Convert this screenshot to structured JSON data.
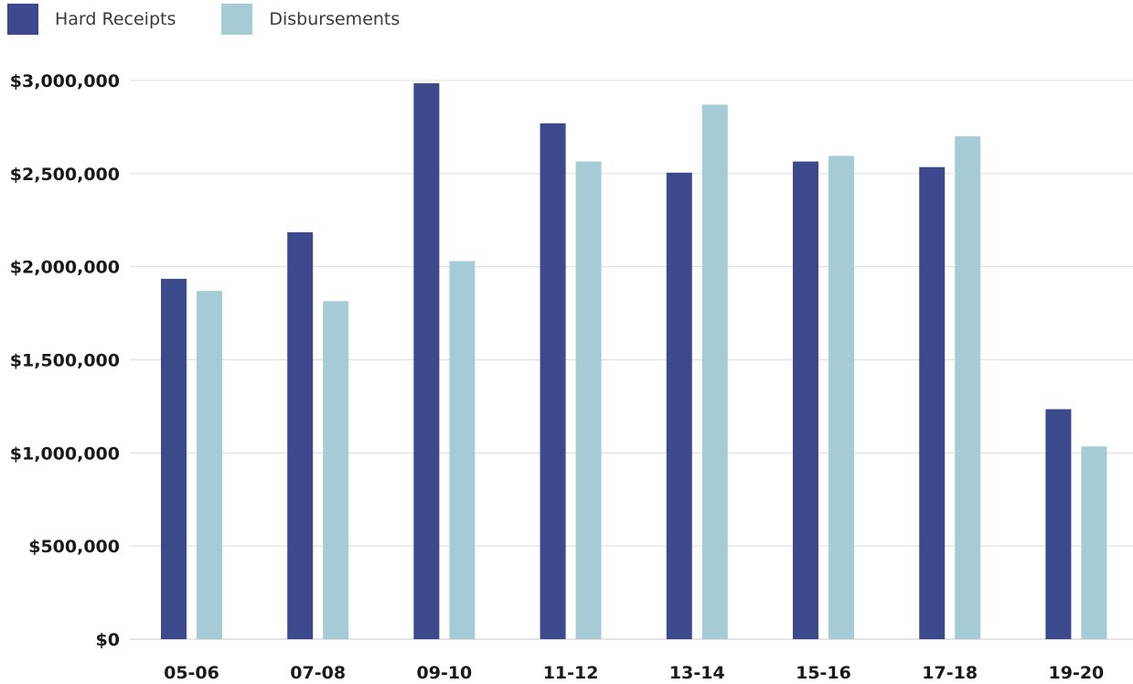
{
  "chart_data": {
    "type": "bar",
    "categories": [
      "05-06",
      "07-08",
      "09-10",
      "11-12",
      "13-14",
      "15-16",
      "17-18",
      "19-20"
    ],
    "series": [
      {
        "name": "Hard Receipts",
        "color": "#3c4a8d",
        "values": [
          1935000,
          2185000,
          2985000,
          2770000,
          2505000,
          2565000,
          2535000,
          1235000
        ]
      },
      {
        "name": "Disbursements",
        "color": "#a5ccd6",
        "values": [
          1870000,
          1815000,
          2030000,
          2565000,
          2870000,
          2595000,
          2700000,
          1035000
        ]
      }
    ],
    "ylim": [
      0,
      3000000
    ],
    "yticks": [
      0,
      500000,
      1000000,
      1500000,
      2000000,
      2500000,
      3000000
    ],
    "ytick_labels": [
      "$0",
      "$500,000",
      "$1,000,000",
      "$1,500,000",
      "$2,000,000",
      "$2,500,000",
      "$3,000,000"
    ],
    "title": "",
    "xlabel": "",
    "ylabel": "",
    "grid": true,
    "legend_position": "top-left"
  },
  "legend": {
    "items": [
      {
        "label": "Hard Receipts",
        "color": "#3c4a8d"
      },
      {
        "label": "Disbursements",
        "color": "#a5ccd6"
      }
    ]
  }
}
